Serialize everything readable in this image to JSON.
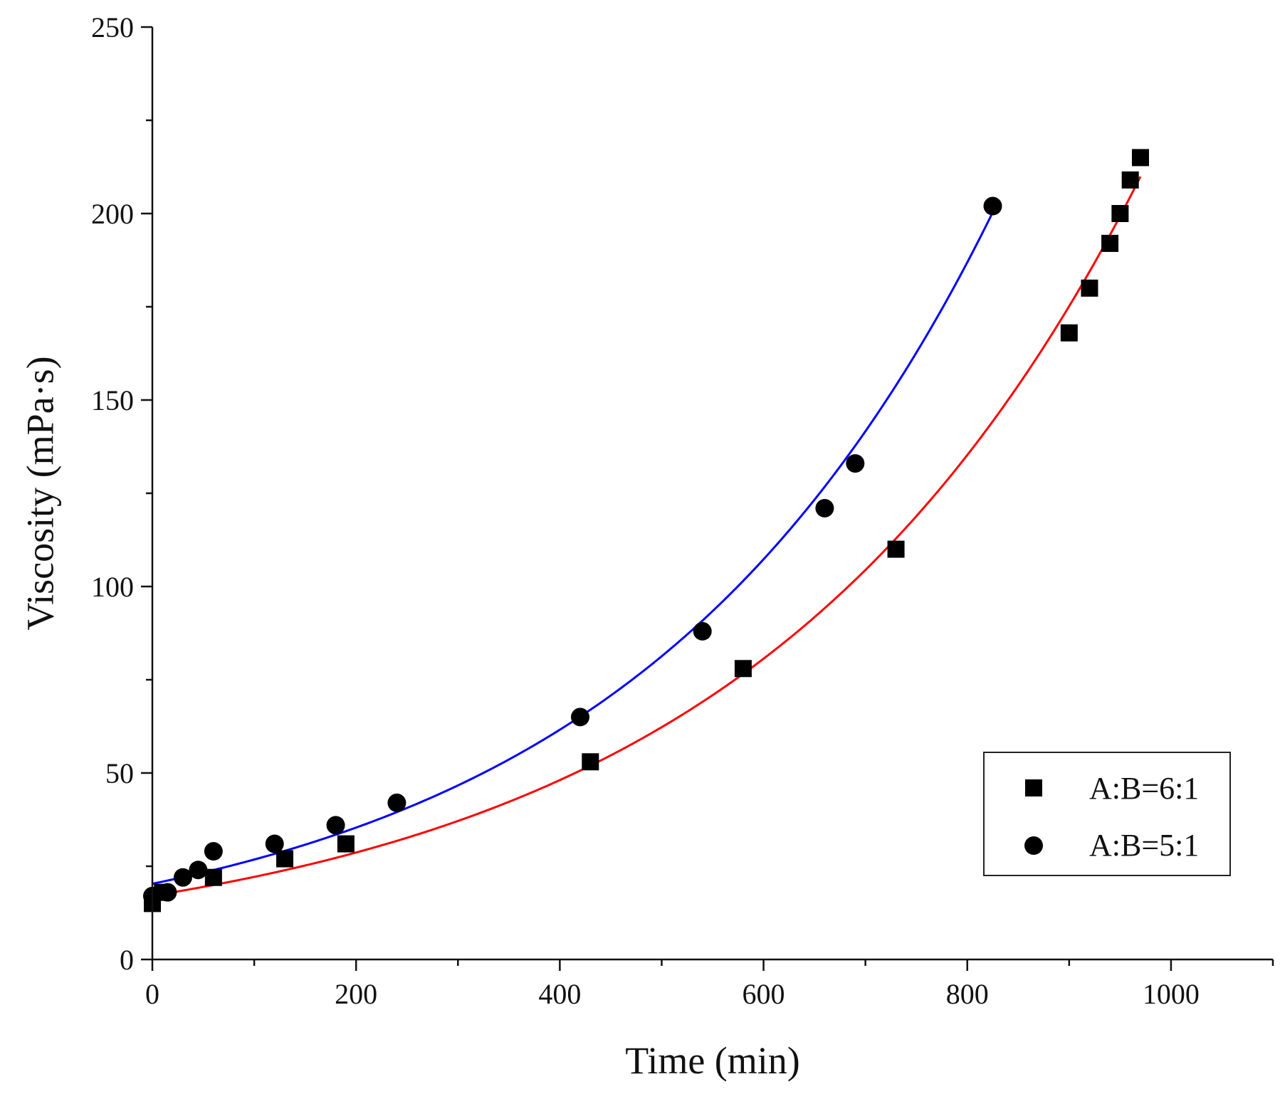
{
  "chart_data": {
    "type": "scatter",
    "title": "",
    "xlabel": "Time (min)",
    "ylabel": "Viscosity (mPa·s)",
    "xlim": [
      0,
      1100
    ],
    "ylim": [
      0,
      250
    ],
    "xticks": [
      0,
      200,
      400,
      600,
      800,
      1000
    ],
    "yticks": [
      0,
      50,
      100,
      150,
      200,
      250
    ],
    "x_minor_step": 100,
    "y_minor_step": 25,
    "legend_position": "lower-right",
    "series": [
      {
        "name": "A:B=6:1",
        "marker": "square",
        "color": "#000000",
        "fit_color": "#ff0000",
        "x": [
          0,
          10,
          60,
          130,
          190,
          430,
          580,
          730,
          900,
          920,
          940,
          950,
          960,
          970
        ],
        "y": [
          15,
          18,
          22,
          27,
          31,
          53,
          78,
          110,
          168,
          180,
          192,
          200,
          209,
          215
        ],
        "fit": {
          "model": "exponential",
          "a": 17.1,
          "b": 0.002585,
          "x_range": [
            0,
            970
          ]
        }
      },
      {
        "name": "A:B=5:1",
        "marker": "circle",
        "color": "#000000",
        "fit_color": "#0000ff",
        "x": [
          0,
          15,
          30,
          45,
          60,
          120,
          180,
          240,
          420,
          540,
          660,
          690,
          825
        ],
        "y": [
          17,
          18,
          22,
          24,
          29,
          31,
          36,
          42,
          65,
          88,
          121,
          133,
          202
        ],
        "fit": {
          "model": "exponential",
          "a": 20.3,
          "b": 0.002775,
          "x_range": [
            0,
            825
          ]
        }
      }
    ]
  }
}
